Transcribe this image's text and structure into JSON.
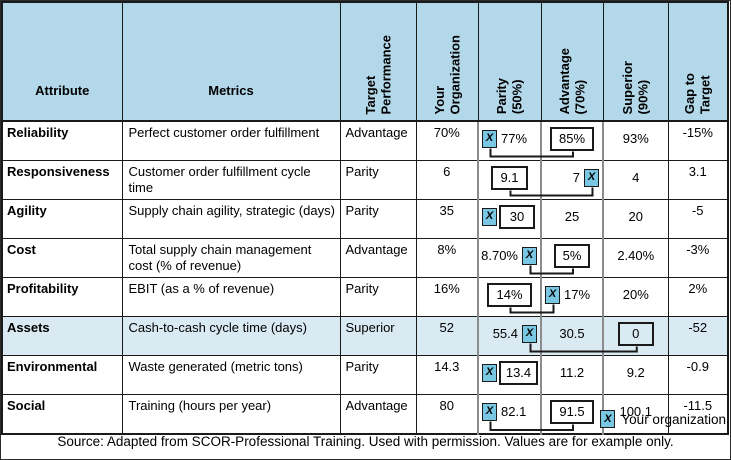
{
  "table": {
    "headers": [
      "Attribute",
      "Metrics",
      "Target\nPerformance",
      "Your\nOrganization",
      "Parity\n(50%)",
      "Advantage\n(70%)",
      "Superior\n(90%)",
      "Gap to\nTarget"
    ],
    "rows": [
      {
        "attribute": "Reliability",
        "metric": "Perfect customer order fulfillment",
        "target": "Advantage",
        "your_org": "70%",
        "parity": {
          "value": "77%",
          "marker": "left",
          "boxed": false
        },
        "advantage": {
          "value": "85%",
          "marker": "none",
          "boxed": true
        },
        "superior": {
          "value": "93%",
          "marker": "none",
          "boxed": false
        },
        "gap": "-15%",
        "connector": true,
        "highlight": false
      },
      {
        "attribute": "Responsiveness",
        "metric": "Customer order fulfillment cycle time",
        "target": "Parity",
        "your_org": "6",
        "parity": {
          "value": "9.1",
          "marker": "none",
          "boxed": true
        },
        "advantage": {
          "value": "7",
          "marker": "right",
          "boxed": false
        },
        "superior": {
          "value": "4",
          "marker": "none",
          "boxed": false
        },
        "gap": "3.1",
        "connector": true,
        "highlight": false
      },
      {
        "attribute": "Agility",
        "metric": "Supply chain agility, strategic (days)",
        "target": "Parity",
        "your_org": "35",
        "parity": {
          "value": "30",
          "marker": "left",
          "boxed": true
        },
        "advantage": {
          "value": "25",
          "marker": "none",
          "boxed": false
        },
        "superior": {
          "value": "20",
          "marker": "none",
          "boxed": false
        },
        "gap": "-5",
        "connector": false,
        "highlight": false
      },
      {
        "attribute": "Cost",
        "metric": "Total supply chain management cost (% of revenue)",
        "target": "Advantage",
        "your_org": "8%",
        "parity": {
          "value": "8.70%",
          "marker": "right",
          "boxed": false
        },
        "advantage": {
          "value": "5%",
          "marker": "none",
          "boxed": true
        },
        "superior": {
          "value": "2.40%",
          "marker": "none",
          "boxed": false
        },
        "gap": "-3%",
        "connector": true,
        "highlight": false
      },
      {
        "attribute": "Profitability",
        "metric": "EBIT (as a % of revenue)",
        "target": "Parity",
        "your_org": "16%",
        "parity": {
          "value": "14%",
          "marker": "none",
          "boxed": true
        },
        "advantage": {
          "value": "17%",
          "marker": "left",
          "boxed": false
        },
        "superior": {
          "value": "20%",
          "marker": "none",
          "boxed": false
        },
        "gap": "2%",
        "connector": true,
        "highlight": false
      },
      {
        "attribute": "Assets",
        "metric": "Cash-to-cash cycle time (days)",
        "target": "Superior",
        "your_org": "52",
        "parity": {
          "value": "55.4",
          "marker": "right",
          "boxed": false
        },
        "advantage": {
          "value": "30.5",
          "marker": "none",
          "boxed": false
        },
        "superior": {
          "value": "0",
          "marker": "none",
          "boxed": true
        },
        "gap": "-52",
        "connector": true,
        "highlight": true
      },
      {
        "attribute": "Environmental",
        "metric": "Waste generated (metric tons)",
        "target": "Parity",
        "your_org": "14.3",
        "parity": {
          "value": "13.4",
          "marker": "left",
          "boxed": true
        },
        "advantage": {
          "value": "11.2",
          "marker": "none",
          "boxed": false
        },
        "superior": {
          "value": "9.2",
          "marker": "none",
          "boxed": false
        },
        "gap": "-0.9",
        "connector": false,
        "highlight": false
      },
      {
        "attribute": "Social",
        "metric": "Training (hours per year)",
        "target": "Advantage",
        "your_org": "80",
        "parity": {
          "value": "82.1",
          "marker": "left",
          "boxed": false
        },
        "advantage": {
          "value": "91.5",
          "marker": "none",
          "boxed": true
        },
        "superior": {
          "value": "100.1",
          "marker": "none",
          "boxed": false
        },
        "gap": "-11.5",
        "connector": true,
        "highlight": false
      }
    ]
  },
  "legend": {
    "marker_glyph": "X",
    "label": "Your organization"
  },
  "source_note": "Source: Adapted from SCOR-Professional Training. Used with permission. Values are for example only.",
  "colors": {
    "header_bg": "#b3d8e9",
    "highlight_row_bg": "#d9eaf3",
    "marker_bg": "#79c7e3",
    "grid_line": "#1a1a1a",
    "benchmark_divider": "#8c8c8c"
  }
}
